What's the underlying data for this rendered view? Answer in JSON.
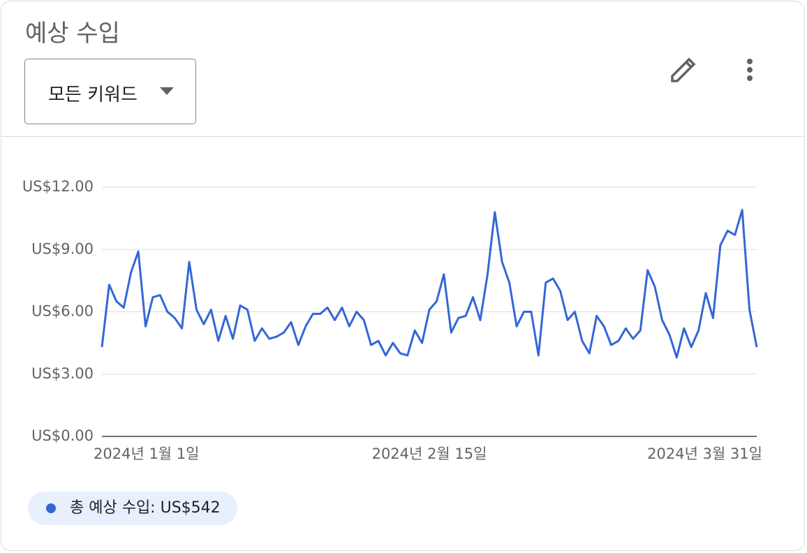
{
  "header": {
    "title": "예상 수입",
    "dropdown": "모든 키워드"
  },
  "chart_data": {
    "type": "line",
    "categories": [
      "2024년 1월 1일",
      null,
      null,
      null,
      null,
      null,
      null,
      null,
      null,
      null,
      null,
      null,
      null,
      null,
      null,
      null,
      null,
      null,
      null,
      null,
      null,
      null,
      null,
      null,
      null,
      null,
      null,
      null,
      null,
      null,
      null,
      null,
      null,
      null,
      null,
      null,
      null,
      null,
      null,
      null,
      null,
      null,
      null,
      null,
      null,
      "2024년 2월 15일",
      null,
      null,
      null,
      null,
      null,
      null,
      null,
      null,
      null,
      null,
      null,
      null,
      null,
      null,
      null,
      null,
      null,
      null,
      null,
      null,
      null,
      null,
      null,
      null,
      null,
      null,
      null,
      null,
      null,
      null,
      null,
      null,
      null,
      null,
      null,
      null,
      null,
      null,
      null,
      null,
      null,
      null,
      null,
      null,
      "2024년 3월 31일"
    ],
    "series": [
      {
        "name": "총 예상 수입: US$542",
        "color": "#3367d6",
        "values": [
          4.3,
          7.3,
          6.5,
          6.2,
          7.9,
          8.9,
          5.3,
          6.7,
          6.8,
          6.0,
          5.7,
          5.2,
          8.4,
          6.1,
          5.4,
          6.1,
          4.6,
          5.8,
          4.7,
          6.3,
          6.1,
          4.6,
          5.2,
          4.7,
          4.8,
          5.0,
          5.5,
          4.4,
          5.3,
          5.9,
          5.9,
          6.2,
          5.6,
          6.2,
          5.3,
          6.0,
          5.6,
          4.4,
          4.6,
          3.9,
          4.5,
          4.0,
          3.9,
          5.1,
          4.5,
          6.1,
          6.5,
          7.8,
          5.0,
          5.7,
          5.8,
          6.7,
          5.6,
          7.8,
          10.8,
          8.4,
          7.4,
          5.3,
          6.0,
          6.0,
          3.9,
          7.4,
          7.6,
          7.0,
          5.6,
          6.0,
          4.6,
          4.0,
          5.8,
          5.3,
          4.4,
          4.6,
          5.2,
          4.7,
          5.1,
          8.0,
          7.2,
          5.6,
          4.9,
          3.8,
          5.2,
          4.3,
          5.1,
          6.9,
          5.7,
          9.2,
          9.9,
          9.7,
          10.9,
          6.1,
          4.3
        ]
      }
    ],
    "ylim": [
      0,
      12
    ],
    "yticks": [
      {
        "value": 0,
        "label": "US$0.00"
      },
      {
        "value": 3,
        "label": "US$3.00"
      },
      {
        "value": 6,
        "label": "US$6.00"
      },
      {
        "value": 9,
        "label": "US$9.00"
      },
      {
        "value": 12,
        "label": "US$12.00"
      }
    ],
    "grid": true
  }
}
